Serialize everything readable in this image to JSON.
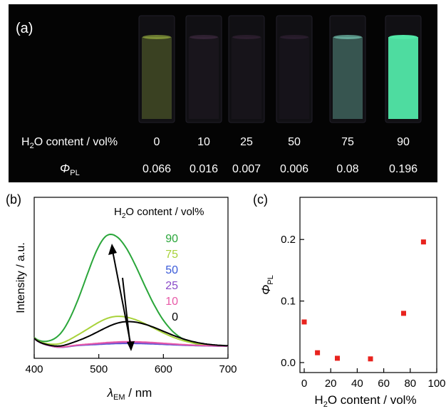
{
  "panel_a": {
    "label": "(a)",
    "row_content_label": "H2O content / vol%",
    "row_pl_label": "ΦPL",
    "samples": [
      {
        "h2o": "0",
        "pl": "0.066",
        "glow": "#b6d24a",
        "intensity": 0.25
      },
      {
        "h2o": "10",
        "pl": "0.016",
        "glow": "#5a3a5a",
        "intensity": 0.06
      },
      {
        "h2o": "25",
        "pl": "0.007",
        "glow": "#4a2e4a",
        "intensity": 0.05
      },
      {
        "h2o": "50",
        "pl": "0.006",
        "glow": "#452a48",
        "intensity": 0.05
      },
      {
        "h2o": "75",
        "pl": "0.08",
        "glow": "#7fd6c0",
        "intensity": 0.35
      },
      {
        "h2o": "90",
        "pl": "0.196",
        "glow": "#52e8a8",
        "intensity": 0.95
      }
    ]
  },
  "chart_data": [
    {
      "type": "line",
      "panel_label": "(b)",
      "xlabel_main": "λ",
      "xlabel_sub": "EM",
      "xlabel_rest": " / nm",
      "ylabel": "Intensity / a.u.",
      "xlim": [
        400,
        700
      ],
      "xticks": [
        "400",
        "500",
        "600",
        "700"
      ],
      "legend_title_main": "H",
      "legend_title_sub": "2",
      "legend_title_rest": "O content / vol%",
      "legend_placement": "top-right",
      "series": [
        {
          "name": "90",
          "color": "#2aa63a",
          "peak_x": 518,
          "peak_y": 1.0,
          "width_left": 38,
          "width_right": 48
        },
        {
          "name": "75",
          "color": "#a8d23a",
          "peak_x": 530,
          "peak_y": 0.267,
          "width_left": 45,
          "width_right": 55
        },
        {
          "name": "50",
          "color": "#3a5ad8",
          "peak_x": 545,
          "peak_y": 0.025,
          "width_left": 50,
          "width_right": 60
        },
        {
          "name": "25",
          "color": "#8a4ac8",
          "peak_x": 545,
          "peak_y": 0.03,
          "width_left": 50,
          "width_right": 60
        },
        {
          "name": "10",
          "color": "#e85aa8",
          "peak_x": 545,
          "peak_y": 0.04,
          "width_left": 50,
          "width_right": 60
        },
        {
          "name": "0",
          "color": "#000000",
          "peak_x": 545,
          "peak_y": 0.22,
          "width_left": 45,
          "width_right": 55
        }
      ],
      "annotations": [
        "arrow up (0 → 90)",
        "arrow down (0 → 50)"
      ]
    },
    {
      "type": "scatter",
      "panel_label": "(c)",
      "xlabel_main": "H",
      "xlabel_sub": "2",
      "xlabel_rest": "O content / vol%",
      "ylabel_main": "Φ",
      "ylabel_sub": "PL",
      "xlim": [
        0,
        100
      ],
      "ylim": [
        0,
        0.25
      ],
      "xticks": [
        "0",
        "20",
        "40",
        "60",
        "80",
        "100"
      ],
      "yticks": [
        "0.0",
        "0.1",
        "0.2"
      ],
      "marker_color": "#e8231e",
      "points": [
        {
          "x": 0,
          "y": 0.066
        },
        {
          "x": 10,
          "y": 0.016
        },
        {
          "x": 25,
          "y": 0.007
        },
        {
          "x": 50,
          "y": 0.006
        },
        {
          "x": 75,
          "y": 0.08
        },
        {
          "x": 90,
          "y": 0.196
        }
      ]
    }
  ]
}
